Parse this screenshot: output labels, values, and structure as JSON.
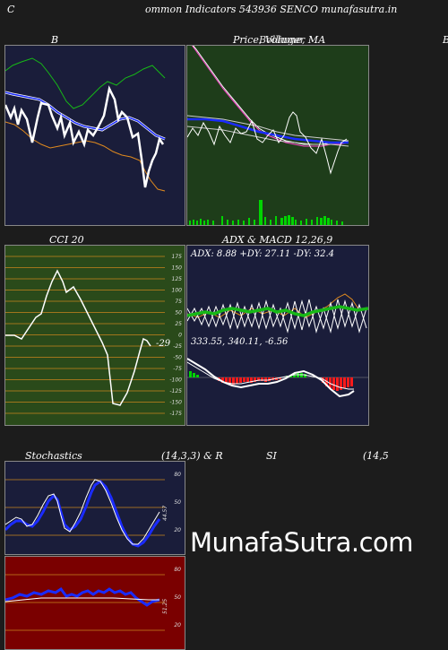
{
  "header": {
    "left_letter": "C",
    "title": "ommon  Indicators 543936  SENCO munafasutra.in"
  },
  "bollinger": {
    "title": "B"
  },
  "price": {
    "title": "Price, Volume, MA",
    "overlap": "Bollinger",
    "right_cut": "B"
  },
  "cci": {
    "title": "CCI 20",
    "value_label": "-29",
    "ticks": [
      "175",
      "150",
      "125",
      "100",
      "75",
      "50",
      "25",
      "0",
      "-25",
      "-50",
      "-75",
      "-100",
      "-125",
      "-150",
      "-175"
    ]
  },
  "adx": {
    "title": "ADX  & MACD 12,26,9",
    "line1": "ADX: 8.88  +DY: 27.11 -DY: 32.4",
    "line2": "333.55,  340.11,  -6.56"
  },
  "stoch": {
    "title_left": "Stochastics",
    "title_params": "(14,3,3) & R",
    "title_si": "SI",
    "title_right": "(14,5",
    "value_label": "44.57",
    "ticks": [
      "80",
      "50",
      "20"
    ]
  },
  "rsi": {
    "value_label": "51.25",
    "ticks": [
      "80",
      "50",
      "20"
    ]
  },
  "watermark": "MunafaSutra.com",
  "colors": {
    "panel_navy": "#1a1d3a",
    "panel_green": "#1e3d1a",
    "panel_cci": "#2a4a1a",
    "panel_red": "#7a0000",
    "grid_orange": "#c8841e",
    "line_blue": "#1a2bff",
    "line_green": "#17b817",
    "line_white": "#ffffff",
    "line_orange": "#e08a1e",
    "volume_green": "#00d400",
    "macd_red": "#ff1a1a"
  }
}
